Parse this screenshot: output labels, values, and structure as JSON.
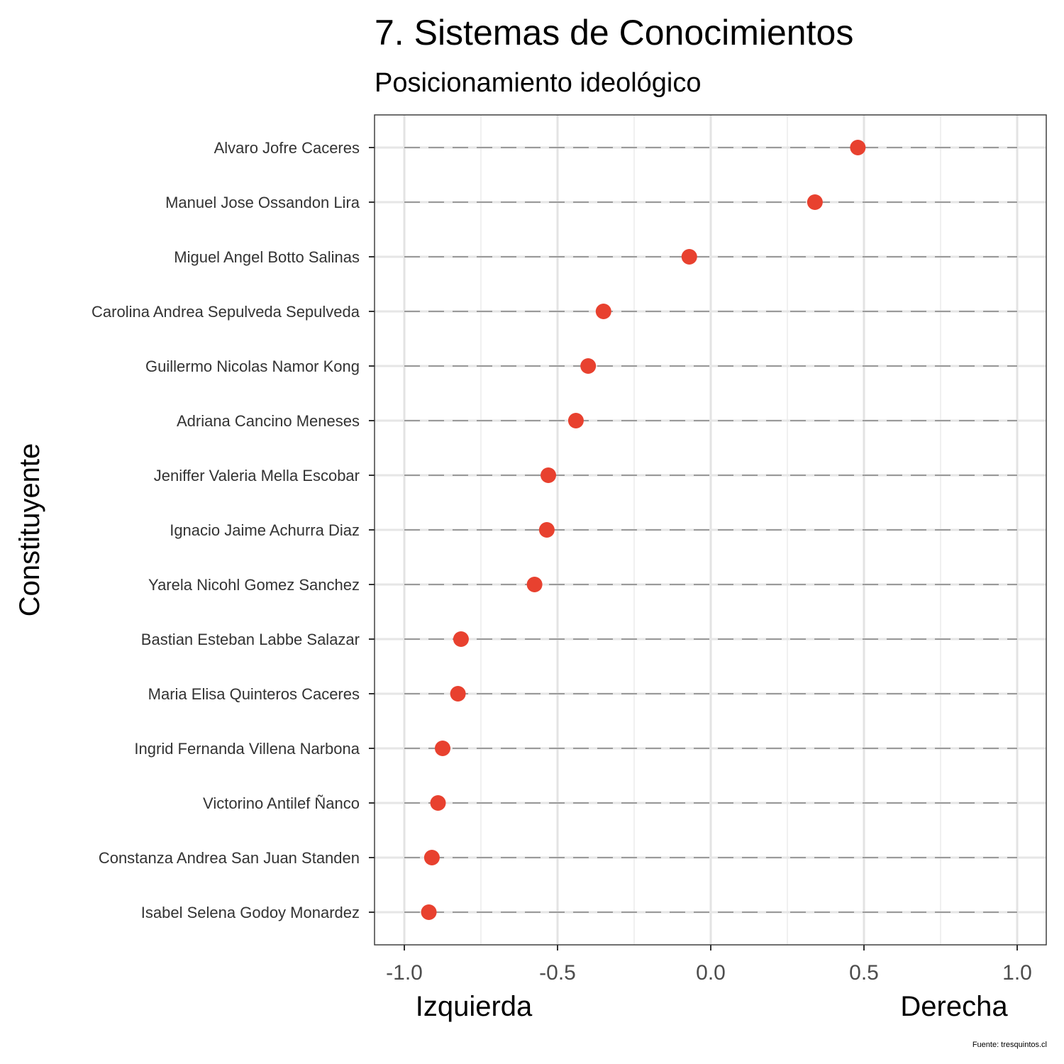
{
  "chart_data": {
    "type": "scatter",
    "title": "7. Sistemas de Conocimientos",
    "subtitle": "Posicionamiento ideológico",
    "ylabel": "Constituyente",
    "xlabel_left": "Izquierda",
    "xlabel_right": "Derecha",
    "caption": "Fuente: tresquintos.cl",
    "xlim": [
      -1.1,
      1.1
    ],
    "xticks": [
      -1.0,
      -0.5,
      0.0,
      0.5,
      1.0
    ],
    "xtick_labels": [
      "-1.0",
      "-0.5",
      "0.0",
      "0.5",
      "1.0"
    ],
    "grid": true,
    "point_color": "#e8412f",
    "categories": [
      "Alvaro Jofre Caceres",
      "Manuel Jose Ossandon Lira",
      "Miguel Angel Botto Salinas",
      "Carolina Andrea Sepulveda Sepulveda",
      "Guillermo Nicolas Namor Kong",
      "Adriana Cancino Meneses",
      "Jeniffer Valeria Mella Escobar",
      "Ignacio Jaime Achurra Diaz",
      "Yarela Nicohl Gomez Sanchez",
      "Bastian Esteban Labbe Salazar",
      "Maria Elisa Quinteros Caceres",
      "Ingrid Fernanda Villena Narbona",
      "Victorino Antilef Ñanco",
      "Constanza Andrea San Juan Standen",
      "Isabel Selena Godoy Monardez"
    ],
    "values": [
      0.48,
      0.34,
      -0.07,
      -0.35,
      -0.4,
      -0.44,
      -0.53,
      -0.535,
      -0.575,
      -0.815,
      -0.825,
      -0.875,
      -0.89,
      -0.91,
      -0.92
    ]
  }
}
